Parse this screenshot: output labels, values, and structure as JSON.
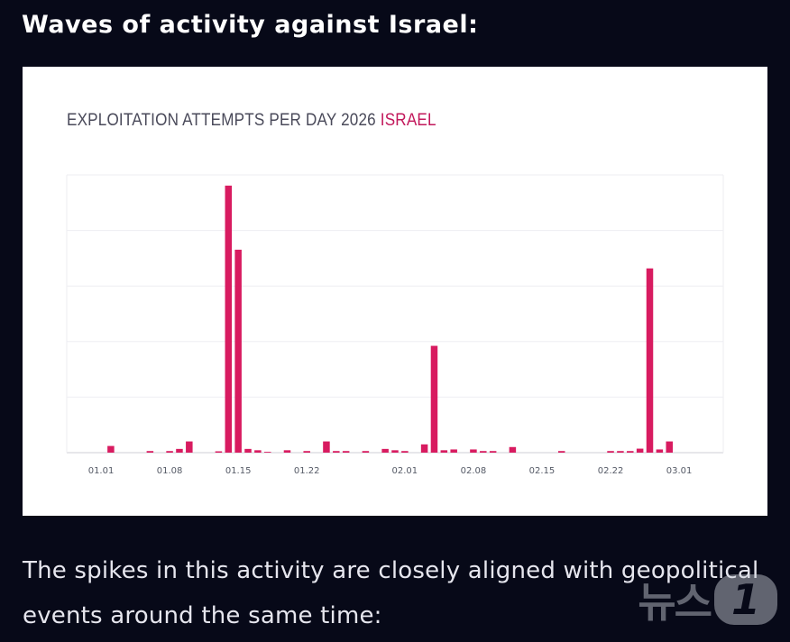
{
  "heading": "Waves of activity against Israel:",
  "chart_data": {
    "type": "bar",
    "title": "EXPLOITATION ATTEMPTS PER DAY 2026",
    "title_highlight": "ISRAEL",
    "xlabel": "",
    "ylabel": "",
    "ylim": [
      0,
      100
    ],
    "grid": true,
    "x_tick_labels": [
      "01.01",
      "01.08",
      "01.15",
      "01.22",
      "02.01",
      "02.08",
      "02.15",
      "02.22",
      "03.01"
    ],
    "x_tick_days": [
      0,
      7,
      14,
      21,
      31,
      38,
      45,
      52,
      59
    ],
    "bar_color": "#d81b60",
    "days": [
      1,
      5,
      7,
      8,
      9,
      12,
      13,
      14,
      15,
      16,
      17,
      19,
      21,
      23,
      24,
      25,
      27,
      29,
      30,
      31,
      33,
      34,
      35,
      36,
      38,
      39,
      40,
      42,
      47,
      52,
      53,
      54,
      55,
      56,
      57,
      58,
      59,
      60
    ],
    "values": [
      2.5,
      0.6,
      0.6,
      1.4,
      4.2,
      0.5,
      100,
      76,
      1.4,
      0.9,
      0.3,
      0.9,
      0.6,
      4.2,
      0.6,
      0.6,
      0.6,
      1.4,
      0.9,
      0.6,
      3.1,
      40,
      0.9,
      1.2,
      1.2,
      0.6,
      0.6,
      2.1,
      0.6,
      0.6,
      0.6,
      0.6,
      1.5,
      69,
      1.2,
      4.2,
      0,
      0
    ]
  },
  "body_text": "The spikes in this activity are closely aligned with geopolitical events around the same time:",
  "watermark": {
    "text": "뉴스",
    "badge": "1"
  }
}
